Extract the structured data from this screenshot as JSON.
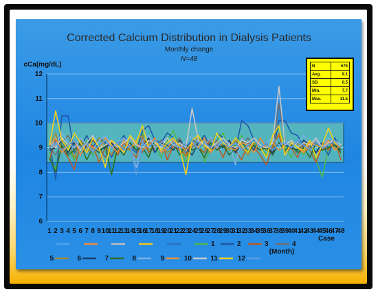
{
  "chart_data": {
    "type": "line",
    "title": "Corrected Calcium Distribution in Dialysis Patients",
    "subtitle": "Monthly change",
    "n_label": "N=48",
    "ylabel": "cCa(mg/dL)",
    "xlabel": "Case",
    "legend_caption": "(Month)",
    "ylim": [
      6,
      12
    ],
    "yticks": [
      6,
      7,
      8,
      9,
      10,
      11,
      12
    ],
    "x": [
      1,
      2,
      3,
      4,
      5,
      6,
      7,
      8,
      9,
      10,
      11,
      12,
      13,
      14,
      15,
      16,
      17,
      18,
      19,
      20,
      21,
      22,
      23,
      24,
      25,
      26,
      27,
      28,
      29,
      30,
      31,
      32,
      33,
      34,
      35,
      36,
      37,
      38,
      39,
      40,
      41,
      42,
      43,
      44,
      45,
      46,
      47,
      48
    ],
    "reference_band": [
      8.4,
      10.0
    ],
    "stats": [
      {
        "label": "N",
        "value": "576"
      },
      {
        "label": "Avg.",
        "value": "9.1"
      },
      {
        "label": "SD",
        "value": "0.5"
      },
      {
        "label": "Min.",
        "value": "7.7"
      },
      {
        "label": "Max.",
        "value": "11.5"
      }
    ],
    "legend_markers": [
      {
        "label": "",
        "color": "#4aa3e8"
      },
      {
        "label": "",
        "color": "#f08a3c"
      },
      {
        "label": "",
        "color": "#bdbdbd"
      },
      {
        "label": "",
        "color": "#f5c518"
      },
      {
        "label": "",
        "color": "#2f6fc0"
      }
    ],
    "series": [
      {
        "name": "1",
        "color": "#4fb84a",
        "values": [
          8.8,
          8.1,
          9.4,
          9.0,
          8.5,
          8.9,
          9.3,
          8.7,
          9.1,
          9.0,
          7.9,
          9.2,
          8.9,
          9.4,
          9.0,
          9.6,
          8.8,
          9.1,
          8.6,
          9.3,
          9.7,
          9.0,
          8.4,
          9.2,
          9.5,
          8.4,
          9.0,
          9.3,
          9.6,
          8.9,
          9.1,
          9.5,
          8.8,
          9.2,
          9.0,
          8.7,
          9.4,
          9.8,
          9.1,
          8.6,
          9.0,
          8.7,
          9.2,
          8.5,
          7.8,
          9.0,
          9.3,
          8.9
        ]
      },
      {
        "name": "2",
        "color": "#1f5aa8",
        "values": [
          9.2,
          7.7,
          10.3,
          10.3,
          8.8,
          9.0,
          9.5,
          9.0,
          9.4,
          9.2,
          8.6,
          9.1,
          9.5,
          9.0,
          8.8,
          9.7,
          9.9,
          9.3,
          9.2,
          9.6,
          9.4,
          8.9,
          9.0,
          9.3,
          9.2,
          9.5,
          9.0,
          9.6,
          9.4,
          9.1,
          8.9,
          10.1,
          9.9,
          9.3,
          9.0,
          9.2,
          8.7,
          10.1,
          10.1,
          9.6,
          9.5,
          9.0,
          8.9,
          9.3,
          9.1,
          8.7,
          9.4,
          9.0
        ]
      },
      {
        "name": "3",
        "color": "#b85a2a",
        "values": [
          8.5,
          9.3,
          9.0,
          8.6,
          8.1,
          9.2,
          8.8,
          9.1,
          8.4,
          9.0,
          9.3,
          8.7,
          9.2,
          8.9,
          8.6,
          9.4,
          8.8,
          9.0,
          9.3,
          8.5,
          9.1,
          8.9,
          8.7,
          9.2,
          9.0,
          8.8,
          9.4,
          9.1,
          8.6,
          9.3,
          8.9,
          8.5,
          9.2,
          9.0,
          8.7,
          8.3,
          9.1,
          9.5,
          8.8,
          9.0,
          8.6,
          9.2,
          8.9,
          8.4,
          9.1,
          8.9,
          9.3,
          8.5
        ]
      },
      {
        "name": "4",
        "color": "#6e6e6e",
        "values": [
          9.0,
          8.7,
          9.2,
          9.5,
          8.9,
          9.1,
          8.8,
          9.3,
          9.0,
          8.6,
          9.2,
          9.0,
          8.9,
          9.4,
          9.1,
          8.8,
          9.2,
          9.0,
          9.3,
          8.9,
          9.1,
          9.4,
          8.8,
          9.0,
          9.2,
          9.1,
          8.9,
          9.3,
          9.0,
          9.2,
          8.8,
          9.1,
          9.4,
          9.0,
          8.9,
          9.2,
          8.8,
          10.8,
          9.3,
          9.0,
          9.2,
          8.9,
          9.1,
          8.8,
          9.0,
          9.3,
          9.1,
          9.0
        ]
      },
      {
        "name": "5",
        "color": "#a88a2e",
        "values": [
          9.1,
          9.6,
          8.9,
          9.2,
          8.6,
          9.3,
          9.0,
          8.8,
          9.4,
          9.1,
          8.7,
          9.2,
          9.0,
          8.9,
          9.3,
          9.5,
          8.9,
          9.1,
          9.2,
          8.8,
          9.0,
          9.3,
          8.6,
          9.1,
          9.4,
          9.0,
          8.8,
          9.2,
          9.1,
          8.9,
          9.3,
          9.0,
          8.7,
          9.2,
          9.1,
          8.9,
          9.0,
          9.6,
          8.9,
          9.1,
          9.2,
          8.8,
          9.0,
          9.3,
          8.9,
          9.2,
          9.0,
          8.8
        ]
      },
      {
        "name": "6",
        "color": "#17406e",
        "values": [
          8.9,
          9.0,
          9.3,
          8.8,
          9.2,
          8.7,
          9.1,
          9.4,
          8.9,
          9.0,
          9.2,
          8.8,
          9.3,
          9.1,
          8.9,
          9.0,
          9.4,
          8.8,
          9.2,
          9.1,
          8.9,
          9.3,
          9.0,
          8.7,
          9.2,
          9.4,
          8.9,
          9.1,
          9.0,
          9.3,
          8.8,
          9.2,
          9.1,
          8.9,
          9.4,
          9.0,
          8.8,
          9.2,
          9.1,
          9.0,
          8.9,
          9.3,
          9.1,
          8.8,
          9.2,
          9.0,
          9.1,
          8.9
        ]
      },
      {
        "name": "7",
        "color": "#2e6b2a",
        "values": [
          8.6,
          8.0,
          9.1,
          8.7,
          8.9,
          9.2,
          8.5,
          9.0,
          8.8,
          9.1,
          7.9,
          9.0,
          8.7,
          9.2,
          8.9,
          9.0,
          8.6,
          9.3,
          8.8,
          9.0,
          9.2,
          8.7,
          9.1,
          8.9,
          9.0,
          8.6,
          9.2,
          8.9,
          9.1,
          8.7,
          9.0,
          9.3,
          8.8,
          9.1,
          8.9,
          9.0,
          8.7,
          9.2,
          8.9,
          9.1,
          8.8,
          9.0,
          8.6,
          9.2,
          8.9,
          9.0,
          9.1,
          8.8
        ]
      },
      {
        "name": "8",
        "color": "#7fb0e0",
        "values": [
          9.3,
          9.1,
          9.6,
          9.2,
          9.0,
          9.4,
          9.1,
          8.9,
          9.3,
          9.5,
          9.0,
          9.2,
          9.4,
          9.1,
          8.2,
          9.3,
          9.5,
          9.0,
          9.2,
          9.4,
          9.1,
          9.0,
          9.3,
          9.5,
          9.2,
          9.1,
          9.4,
          9.0,
          9.3,
          9.2,
          8.3,
          9.4,
          9.1,
          9.3,
          9.0,
          9.2,
          9.4,
          9.1,
          9.3,
          9.0,
          9.2,
          9.5,
          9.1,
          9.3,
          9.0,
          9.4,
          9.2,
          9.1
        ]
      },
      {
        "name": "9",
        "color": "#f0923a",
        "values": [
          9.0,
          9.4,
          8.8,
          9.1,
          9.3,
          8.7,
          9.2,
          9.0,
          8.9,
          9.4,
          9.1,
          8.8,
          9.3,
          9.0,
          9.2,
          8.9,
          9.1,
          9.4,
          8.8,
          9.0,
          9.3,
          9.1,
          8.9,
          9.2,
          9.0,
          9.4,
          8.8,
          9.1,
          9.3,
          9.0,
          8.9,
          9.2,
          9.1,
          8.8,
          9.4,
          9.0,
          9.2,
          8.9,
          9.1,
          9.3,
          9.0,
          8.8,
          9.2,
          9.1,
          9.0,
          9.3,
          8.9,
          9.1
        ]
      },
      {
        "name": "10",
        "color": "#c8c8c8",
        "values": [
          9.2,
          9.0,
          9.4,
          9.1,
          9.3,
          8.9,
          9.2,
          9.5,
          9.0,
          9.1,
          9.3,
          9.0,
          9.2,
          9.4,
          9.1,
          9.0,
          9.3,
          9.2,
          9.0,
          9.4,
          9.1,
          9.2,
          9.0,
          10.6,
          9.3,
          9.1,
          9.0,
          9.2,
          9.4,
          9.1,
          9.0,
          9.3,
          9.2,
          9.4,
          9.1,
          9.0,
          9.2,
          11.5,
          9.1,
          9.3,
          9.0,
          9.2,
          9.1,
          9.4,
          9.0,
          9.2,
          9.3,
          9.1
        ]
      },
      {
        "name": "11",
        "color": "#f7d21a",
        "values": [
          9.1,
          10.5,
          9.3,
          8.9,
          9.6,
          9.2,
          8.8,
          9.4,
          9.0,
          8.2,
          9.3,
          9.1,
          8.8,
          9.5,
          9.2,
          9.9,
          9.0,
          9.3,
          8.9,
          9.2,
          9.4,
          9.0,
          7.9,
          9.3,
          9.5,
          9.1,
          8.9,
          9.6,
          9.2,
          9.0,
          9.4,
          9.1,
          8.8,
          9.3,
          9.0,
          8.6,
          9.5,
          9.9,
          8.7,
          9.2,
          9.0,
          8.9,
          9.3,
          8.6,
          9.1,
          9.8,
          9.2,
          9.0
        ]
      },
      {
        "name": "12",
        "color": "#5b9be0",
        "values": [
          9.0,
          9.2,
          8.9,
          9.1,
          9.3,
          9.0,
          9.2,
          8.8,
          9.1,
          9.3,
          9.0,
          9.2,
          8.9,
          9.1,
          7.9,
          9.2,
          9.0,
          9.3,
          9.1,
          8.9,
          9.2,
          9.0,
          9.1,
          9.3,
          8.9,
          9.2,
          9.0,
          9.1,
          9.3,
          9.0,
          9.2,
          8.9,
          9.1,
          9.3,
          9.0,
          9.2,
          8.9,
          9.1,
          9.2,
          9.0,
          9.3,
          9.1,
          8.9,
          9.2,
          9.0,
          9.1,
          9.3,
          9.0
        ]
      }
    ]
  }
}
